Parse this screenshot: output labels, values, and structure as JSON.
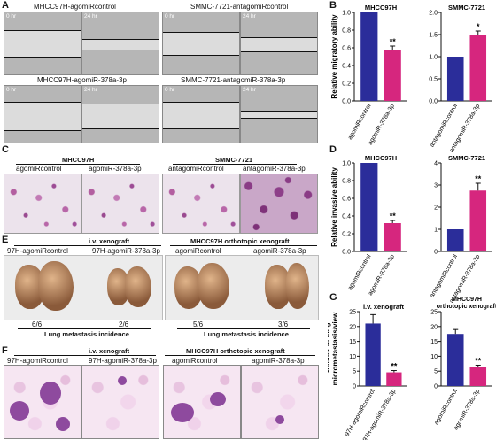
{
  "panel_labels": {
    "a": "A",
    "b": "B",
    "c": "C",
    "d": "D",
    "e": "E",
    "f": "F",
    "g": "G"
  },
  "panel_a": {
    "titles": [
      "MHCC97H-agomiRcontrol",
      "SMMC-7721-antagomiRcontrol",
      "MHCC97H-agomiR-378a-3p",
      "SMMC-7721-antagomiR-378a-3p"
    ],
    "time_0": "0 hr",
    "time_24": "24 hr"
  },
  "panel_c": {
    "group_mhcc": "MHCC97H",
    "group_smmc": "SMMC-7721",
    "labels": [
      "agomiRcontrol",
      "agomiR-378a-3p",
      "antagomiRcontrol",
      "antagomiR-378a-3p"
    ]
  },
  "panel_e": {
    "header_left": "i.v. xenograft",
    "header_right": "MHCC97H orthotopic xenograft",
    "sample_labels": [
      "97H-agomiRcontrol",
      "97H-agomiR-378a-3p",
      "agomiRcontrol",
      "agomiR-378a-3p"
    ],
    "incidence": [
      "6/6",
      "2/6",
      "5/6",
      "3/6"
    ],
    "footer": "Lung metastasis incidence"
  },
  "panel_f": {
    "header_left": "i.v. xenograft",
    "header_right": "MHCC97H orthotopic xenograft",
    "labels": [
      "97H-agomiRcontrol",
      "97H-agomiR-378a-3p",
      "agomiRcontrol",
      "agomiR-378a-3p"
    ]
  },
  "colors": {
    "control": "#2b2d9a",
    "treated": "#d6267e"
  },
  "chart_data": [
    {
      "type": "bar",
      "panel": "B",
      "title": "MHCC97H",
      "ylabel": "Relative migratory ability",
      "categories": [
        "agomiRcontrol",
        "agomiR-378a-3p"
      ],
      "values": [
        1.0,
        0.57
      ],
      "errors": [
        0,
        0.05
      ],
      "ylim": [
        0,
        1.0
      ],
      "yticks": [
        "0.0",
        "0.2",
        "0.4",
        "0.6",
        "0.8",
        "1.0"
      ],
      "significance": [
        "",
        "**"
      ]
    },
    {
      "type": "bar",
      "panel": "B",
      "title": "SMMC-7721",
      "ylabel": "",
      "categories": [
        "antagomiRcontrol",
        "antagomiR-378a-3p"
      ],
      "values": [
        1.0,
        1.48
      ],
      "errors": [
        0,
        0.1
      ],
      "ylim": [
        0,
        2.0
      ],
      "yticks": [
        "0.0",
        "0.5",
        "1.0",
        "1.5",
        "2.0"
      ],
      "significance": [
        "",
        "*"
      ]
    },
    {
      "type": "bar",
      "panel": "D",
      "title": "MHCC97H",
      "ylabel": "Relative invasive ability",
      "categories": [
        "agomiRcontrol",
        "agomiR-378a-3p"
      ],
      "values": [
        1.0,
        0.32
      ],
      "errors": [
        0,
        0.03
      ],
      "ylim": [
        0,
        1.0
      ],
      "yticks": [
        "0.0",
        "0.2",
        "0.4",
        "0.6",
        "0.8",
        "1.0"
      ],
      "significance": [
        "",
        "**"
      ]
    },
    {
      "type": "bar",
      "panel": "D",
      "title": "SMMC-7721",
      "ylabel": "",
      "categories": [
        "antagomiRcontrol",
        "antagomiR-378a-3p"
      ],
      "values": [
        1.0,
        2.75
      ],
      "errors": [
        0,
        0.33
      ],
      "ylim": [
        0,
        4
      ],
      "yticks": [
        "0",
        "1",
        "2",
        "3",
        "4"
      ],
      "significance": [
        "",
        "**"
      ]
    },
    {
      "type": "bar",
      "panel": "G",
      "title": "i.v. xenograft",
      "ylabel": "Number of lung micrometastasis/view",
      "categories": [
        "97H-agomiRcontrol",
        "97H-agomiR-378a-3p"
      ],
      "values": [
        21,
        4.6
      ],
      "errors": [
        3,
        0.6
      ],
      "ylim": [
        0,
        25
      ],
      "yticks": [
        "0",
        "5",
        "10",
        "15",
        "20",
        "25"
      ],
      "significance": [
        "",
        "**"
      ]
    },
    {
      "type": "bar",
      "panel": "G",
      "title": "MHCC97H orthotopic xenograft",
      "ylabel": "",
      "categories": [
        "agomiRcontrol",
        "agomiR-378a-3p"
      ],
      "values": [
        17.5,
        6.5
      ],
      "errors": [
        1.5,
        0.5
      ],
      "ylim": [
        0,
        25
      ],
      "yticks": [
        "0",
        "5",
        "10",
        "15",
        "20",
        "25"
      ],
      "significance": [
        "",
        "**"
      ]
    }
  ]
}
